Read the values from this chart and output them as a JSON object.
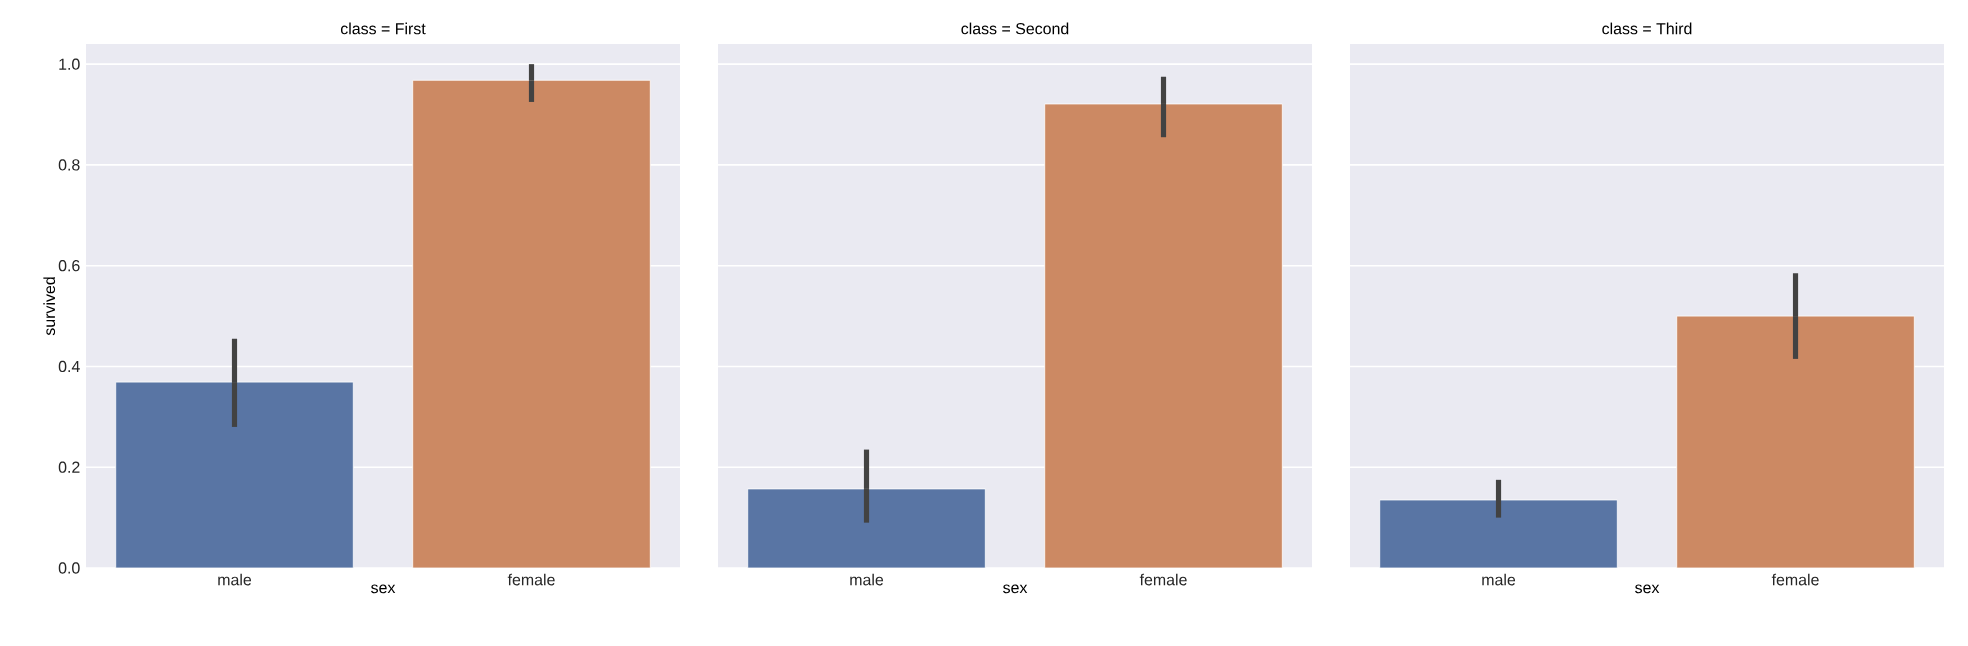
{
  "chart_data": [
    {
      "type": "bar",
      "title": "class = First",
      "xlabel": "sex",
      "ylabel": "survived",
      "categories": [
        "male",
        "female"
      ],
      "values": [
        0.369,
        0.968
      ],
      "colors": [
        "#5975a4",
        "#cc8963"
      ],
      "errors": [
        [
          0.28,
          0.455
        ],
        [
          0.925,
          1.0
        ]
      ],
      "ylim": [
        0,
        1.04
      ],
      "yticks": [
        {
          "value": 0,
          "label": "0.0"
        },
        {
          "value": 0.2,
          "label": "0.2"
        },
        {
          "value": 0.4,
          "label": "0.4"
        },
        {
          "value": 0.6,
          "label": "0.6"
        },
        {
          "value": 0.8,
          "label": "0.8"
        },
        {
          "value": 1.0,
          "label": "1.0"
        }
      ],
      "grid": "y"
    },
    {
      "type": "bar",
      "title": "class = Second",
      "xlabel": "sex",
      "categories": [
        "male",
        "female"
      ],
      "values": [
        0.157,
        0.921
      ],
      "colors": [
        "#5975a4",
        "#cc8963"
      ],
      "errors": [
        [
          0.09,
          0.235
        ],
        [
          0.855,
          0.975
        ]
      ],
      "ylim": [
        0,
        1.04
      ],
      "yticks": [
        {
          "value": 0,
          "label": null
        },
        {
          "value": 0.2,
          "label": null
        },
        {
          "value": 0.4,
          "label": null
        },
        {
          "value": 0.6,
          "label": null
        },
        {
          "value": 0.8,
          "label": null
        },
        {
          "value": 1.0,
          "label": null
        }
      ],
      "grid": "y",
      "tick_labels": "x"
    },
    {
      "type": "bar",
      "title": "class = Third",
      "xlabel": "sex",
      "categories": [
        "male",
        "female"
      ],
      "values": [
        0.135,
        0.5
      ],
      "colors": [
        "#5975a4",
        "#cc8963"
      ],
      "errors": [
        [
          0.1,
          0.175
        ],
        [
          0.415,
          0.585
        ]
      ],
      "ylim": [
        0,
        1.04
      ],
      "yticks": [
        {
          "value": 0,
          "label": null
        },
        {
          "value": 0.2,
          "label": null
        },
        {
          "value": 0.4,
          "label": null
        },
        {
          "value": 0.6,
          "label": null
        },
        {
          "value": 0.8,
          "label": null
        },
        {
          "value": 1.0,
          "label": null
        }
      ],
      "grid": "y",
      "tick_labels": "x"
    }
  ]
}
